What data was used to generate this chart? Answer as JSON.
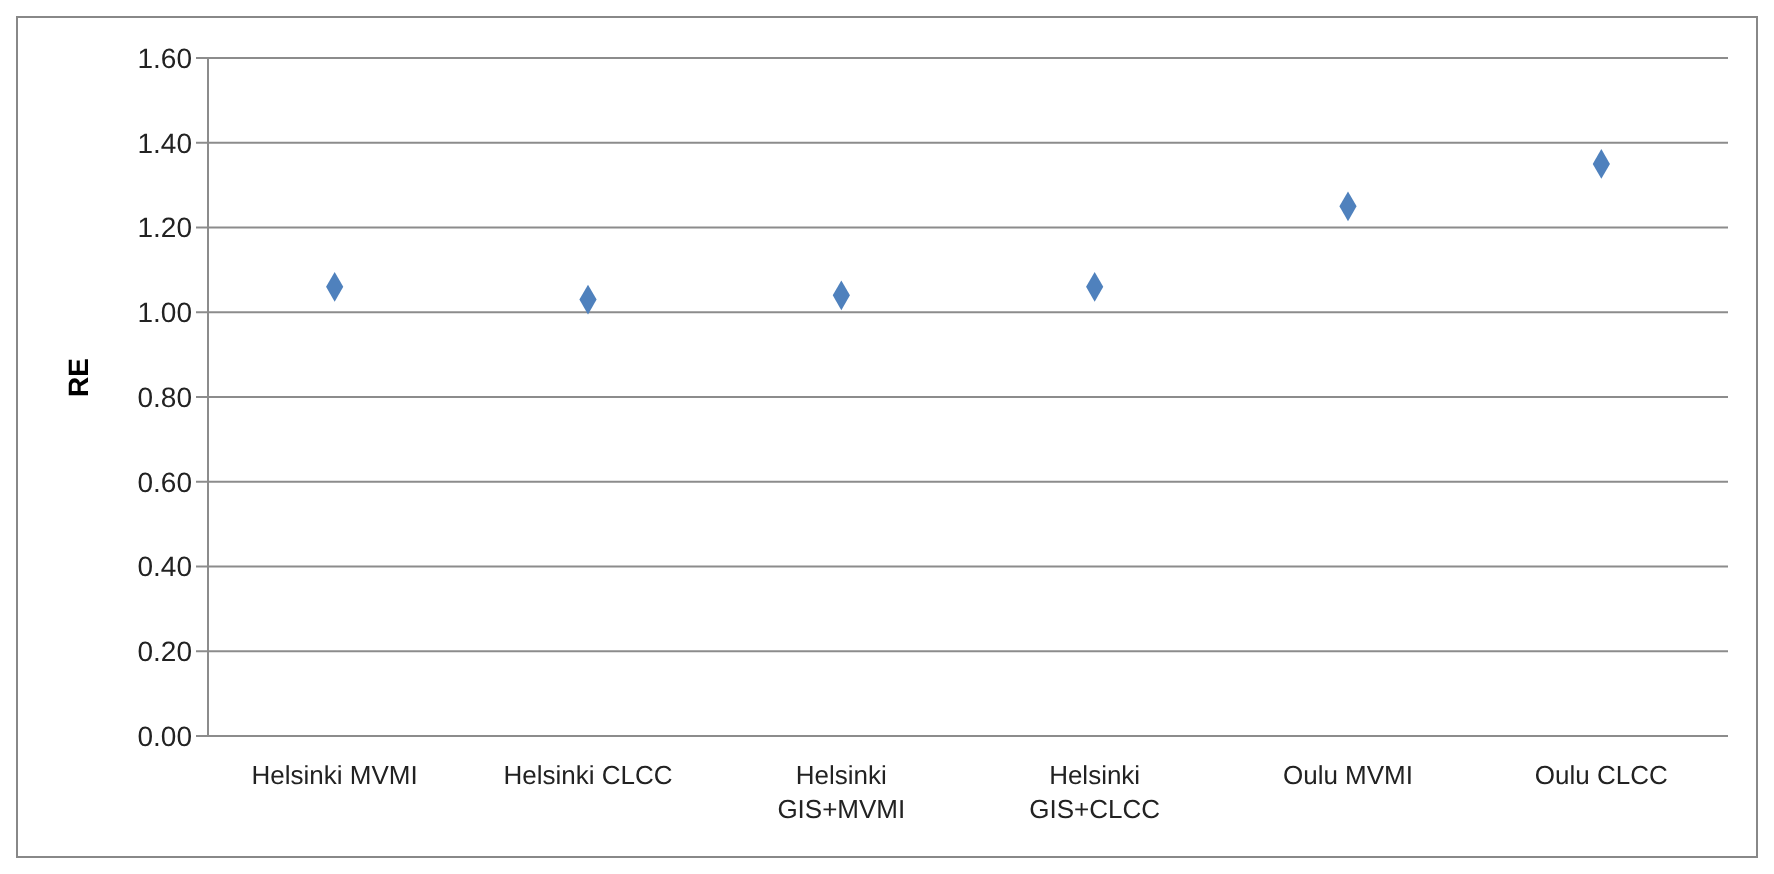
{
  "chart_data": {
    "type": "scatter",
    "ylabel": "RE",
    "categories": [
      "Helsinki MVMI",
      "Helsinki CLCC",
      "Helsinki GIS+MVMI",
      "Helsinki GIS+CLCC",
      "Oulu MVMI",
      "Oulu CLCC"
    ],
    "series": [
      {
        "color": "#4f81bd",
        "values": [
          1.06,
          1.03,
          1.04,
          1.06,
          1.25,
          1.35
        ]
      }
    ],
    "ylim": [
      0,
      1.6
    ],
    "yticks": [
      {
        "value": 0,
        "label": "0.00"
      },
      {
        "value": 0.2,
        "label": "0.20"
      },
      {
        "value": 0.4,
        "label": "0.40"
      },
      {
        "value": 0.6,
        "label": "0.60"
      },
      {
        "value": 0.8,
        "label": "0.80"
      },
      {
        "value": 1,
        "label": "1.00"
      },
      {
        "value": 1.2,
        "label": "1.20"
      },
      {
        "value": 1.4,
        "label": "1.40"
      },
      {
        "value": 1.6,
        "label": "1.60"
      }
    ],
    "grid": "y",
    "marker": "diamond"
  }
}
